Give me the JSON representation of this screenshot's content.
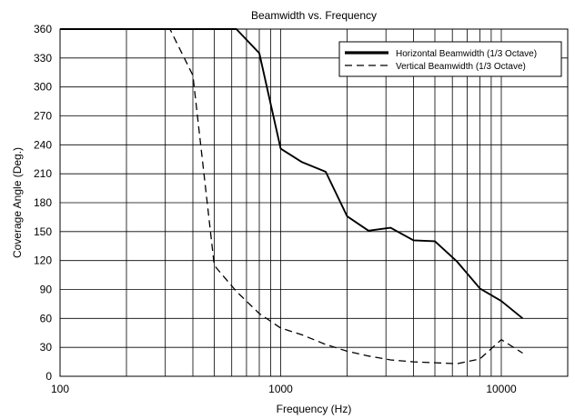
{
  "chart_data": {
    "type": "line",
    "title": "Beamwidth vs. Frequency",
    "xlabel": "Frequency (Hz)",
    "ylabel": "Coverage Angle (Deg.)",
    "x_scale": "log",
    "xlim": [
      100,
      20000
    ],
    "ylim": [
      0,
      360
    ],
    "x_ticks": [
      {
        "value": 100,
        "label": "100"
      },
      {
        "value": 1000,
        "label": "1000"
      },
      {
        "value": 10000,
        "label": "10000"
      }
    ],
    "y_ticks": [
      0,
      30,
      60,
      90,
      120,
      150,
      180,
      210,
      240,
      270,
      300,
      330,
      360
    ],
    "grid": true,
    "x_gridlines": [
      200,
      300,
      400,
      500,
      600,
      700,
      800,
      900,
      1000,
      2000,
      3000,
      4000,
      5000,
      6000,
      7000,
      8000,
      9000,
      10000
    ],
    "legend_placement": "top-right",
    "series": [
      {
        "name": "Horizontal Beamwidth (1/3 Octave)",
        "style": "solid",
        "width": "thick",
        "color": "#000000",
        "points": [
          {
            "x": 100,
            "y": 360
          },
          {
            "x": 630,
            "y": 360
          },
          {
            "x": 800,
            "y": 335
          },
          {
            "x": 1000,
            "y": 236
          },
          {
            "x": 1250,
            "y": 222
          },
          {
            "x": 1600,
            "y": 212
          },
          {
            "x": 2000,
            "y": 166
          },
          {
            "x": 2500,
            "y": 151
          },
          {
            "x": 3150,
            "y": 154
          },
          {
            "x": 4000,
            "y": 141
          },
          {
            "x": 5000,
            "y": 140
          },
          {
            "x": 6300,
            "y": 119
          },
          {
            "x": 8000,
            "y": 91
          },
          {
            "x": 10000,
            "y": 78
          },
          {
            "x": 12500,
            "y": 60
          }
        ]
      },
      {
        "name": "Vertical Beamwidth (1/3 Octave)",
        "style": "dashed",
        "width": "normal",
        "color": "#000000",
        "points": [
          {
            "x": 100,
            "y": 360
          },
          {
            "x": 315,
            "y": 360
          },
          {
            "x": 400,
            "y": 312
          },
          {
            "x": 500,
            "y": 115
          },
          {
            "x": 630,
            "y": 88
          },
          {
            "x": 800,
            "y": 65
          },
          {
            "x": 1000,
            "y": 50
          },
          {
            "x": 1250,
            "y": 43
          },
          {
            "x": 1600,
            "y": 33
          },
          {
            "x": 2000,
            "y": 26
          },
          {
            "x": 2500,
            "y": 21
          },
          {
            "x": 3150,
            "y": 17
          },
          {
            "x": 4000,
            "y": 15
          },
          {
            "x": 5000,
            "y": 14
          },
          {
            "x": 6300,
            "y": 13
          },
          {
            "x": 8000,
            "y": 18
          },
          {
            "x": 10000,
            "y": 38
          },
          {
            "x": 12500,
            "y": 24
          }
        ]
      }
    ]
  }
}
